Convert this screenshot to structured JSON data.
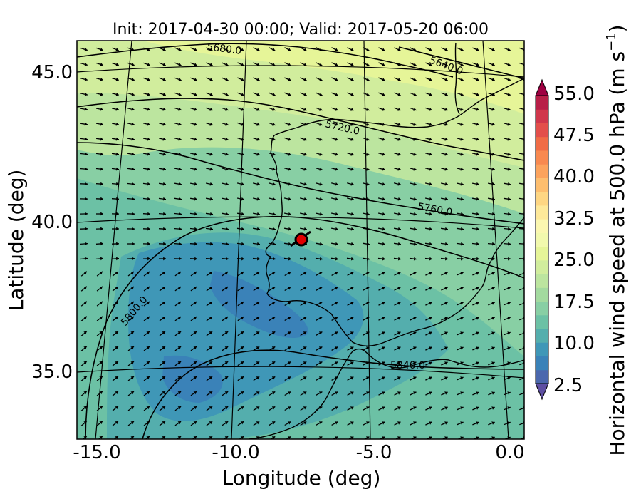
{
  "title": "Init: 2017-04-30 00:00; Valid: 2017-05-20 06:00",
  "x_axis": {
    "label": "Longitude (deg)",
    "ticks": [
      "-15.0",
      "-10.0",
      "-5.0",
      "0.0"
    ],
    "tick_values": [
      -15,
      -10,
      -5,
      0
    ]
  },
  "y_axis": {
    "label": "Latitude (deg)",
    "ticks": [
      "45.0",
      "40.0",
      "35.0"
    ],
    "tick_values": [
      45,
      40,
      35
    ]
  },
  "colorbar": {
    "label": "Horizontal wind speed at 500.0 hPa (m s",
    "label_sup": "−1",
    "label_end": ")",
    "ticks": [
      "2.5",
      "10.0",
      "17.5",
      "25.0",
      "32.5",
      "40.0",
      "47.5",
      "55.0"
    ],
    "levels_min": 2.5,
    "levels_max": 55.0,
    "levels_step": 2.5,
    "extend": "both",
    "colors": [
      "#5e4fa2",
      "#4b67ad",
      "#3a82b8",
      "#3f97b7",
      "#54aead",
      "#6cc1a5",
      "#88cfa4",
      "#a3da9f",
      "#bce59f",
      "#d1ed9d",
      "#e6f598",
      "#f2f9ad",
      "#fbf7b0",
      "#fee99a",
      "#fed683",
      "#fdbe6f",
      "#fca35d",
      "#f88950",
      "#f06c46",
      "#e34f4b",
      "#d0374c",
      "#b81f48",
      "#9e0142"
    ]
  },
  "contours": {
    "variable": "geopotential height at 500 hPa",
    "labels": [
      "5680.0",
      "5640.0",
      "5720.0",
      "5760.0",
      "5800.0",
      "5840.0"
    ]
  },
  "marker": {
    "lon": -7.6,
    "lat": 39.3,
    "color": "#e00000"
  },
  "map": {
    "lon_range": [
      -16,
      0.3
    ],
    "lat_range": [
      32.5,
      46.0
    ],
    "graticule_lons": [
      -15,
      -10,
      -5,
      0
    ],
    "graticule_lats": [
      45,
      40,
      35
    ]
  }
}
